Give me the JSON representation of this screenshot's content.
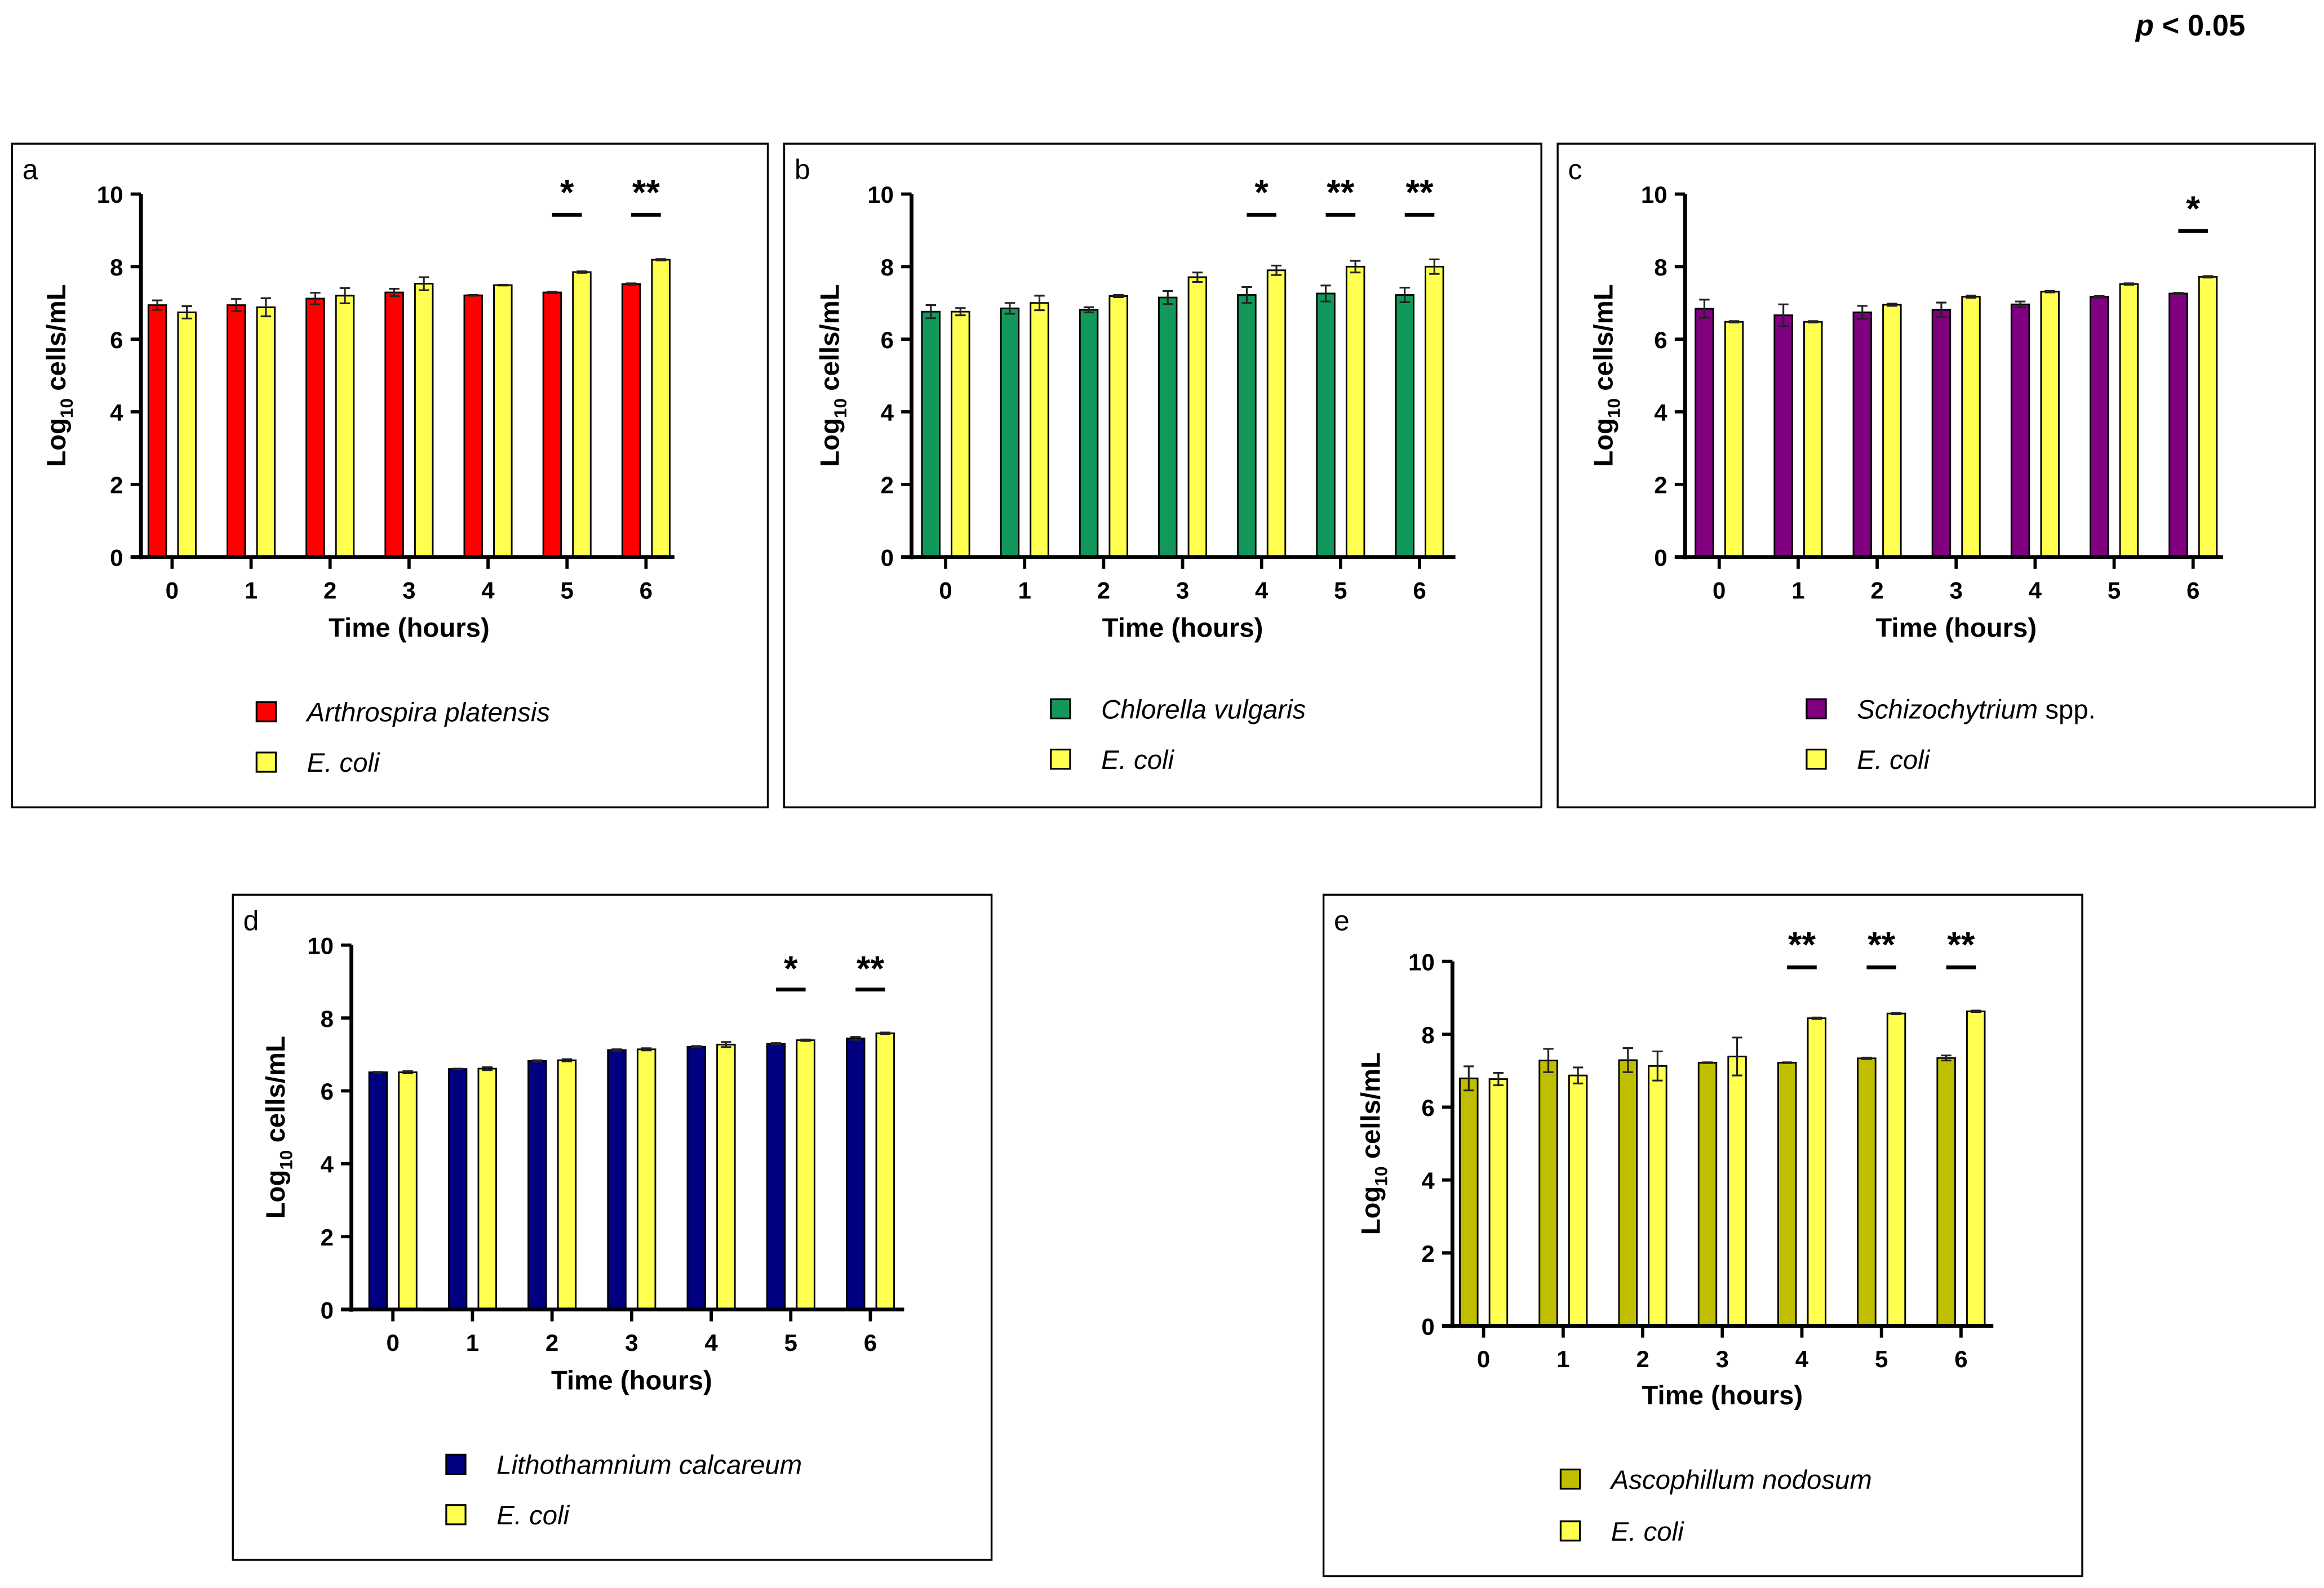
{
  "significance_note": "p < 0.05",
  "chart_data": [
    {
      "type": "bar",
      "panel": "a",
      "xlabel": "Time (hours)",
      "ylabel": {
        "base": "Log",
        "sub": "10",
        "rest": " cells/mL"
      },
      "categories": [
        "0",
        "1",
        "2",
        "3",
        "4",
        "5",
        "6"
      ],
      "ylim": [
        0,
        10
      ],
      "yticks": [
        "0",
        "2",
        "4",
        "6",
        "8",
        "10"
      ],
      "legend_placement": "bottom",
      "series": [
        {
          "name": "Arthrospira platensis",
          "suffix": "",
          "color": "#ff0000",
          "values": [
            6.94,
            6.94,
            7.12,
            7.29,
            7.21,
            7.29,
            7.52
          ],
          "errors": [
            0.13,
            0.17,
            0.16,
            0.1,
            0.01,
            0.02,
            0.02
          ]
        },
        {
          "name": "E. coli",
          "suffix": "",
          "color": "#ffff50",
          "values": [
            6.74,
            6.88,
            7.2,
            7.53,
            7.49,
            7.85,
            8.19
          ],
          "errors": [
            0.17,
            0.25,
            0.21,
            0.18,
            0.01,
            0.02,
            0.02
          ]
        }
      ],
      "significance": [
        {
          "x": "5",
          "label": "*"
        },
        {
          "x": "6",
          "label": "**"
        }
      ]
    },
    {
      "type": "bar",
      "panel": "b",
      "xlabel": "Time (hours)",
      "ylabel": {
        "base": "Log",
        "sub": "10",
        "rest": " cells/mL"
      },
      "categories": [
        "0",
        "1",
        "2",
        "3",
        "4",
        "5",
        "6"
      ],
      "ylim": [
        0,
        10
      ],
      "yticks": [
        "0",
        "2",
        "4",
        "6",
        "8",
        "10"
      ],
      "legend_placement": "bottom",
      "series": [
        {
          "name": "Chlorella vulgaris",
          "suffix": "",
          "color": "#12985a",
          "values": [
            6.76,
            6.85,
            6.81,
            7.15,
            7.22,
            7.26,
            7.22
          ],
          "errors": [
            0.18,
            0.15,
            0.07,
            0.18,
            0.22,
            0.22,
            0.2
          ]
        },
        {
          "name": "E. coli",
          "suffix": "",
          "color": "#ffff50",
          "values": [
            6.76,
            7.0,
            7.19,
            7.71,
            7.9,
            8.0,
            8.0
          ],
          "errors": [
            0.1,
            0.2,
            0.03,
            0.13,
            0.13,
            0.16,
            0.2
          ]
        }
      ],
      "significance": [
        {
          "x": "4",
          "label": "*"
        },
        {
          "x": "5",
          "label": "**"
        },
        {
          "x": "6",
          "label": "**"
        }
      ]
    },
    {
      "type": "bar",
      "panel": "c",
      "xlabel": "Time (hours)",
      "ylabel": {
        "base": "Log",
        "sub": "10",
        "rest": " cells/mL"
      },
      "categories": [
        "0",
        "1",
        "2",
        "3",
        "4",
        "5",
        "6"
      ],
      "ylim": [
        0,
        10
      ],
      "yticks": [
        "0",
        "2",
        "4",
        "6",
        "8",
        "10"
      ],
      "legend_placement": "bottom",
      "series": [
        {
          "name": "Schizochytrium",
          "suffix": " spp.",
          "color": "#800080",
          "values": [
            6.84,
            6.66,
            6.74,
            6.81,
            6.96,
            7.17,
            7.26
          ],
          "errors": [
            0.25,
            0.3,
            0.18,
            0.2,
            0.08,
            0.02,
            0.02
          ]
        },
        {
          "name": "E. coli",
          "suffix": "",
          "color": "#ffff50",
          "values": [
            6.48,
            6.48,
            6.95,
            7.17,
            7.31,
            7.52,
            7.72
          ],
          "errors": [
            0.02,
            0.02,
            0.03,
            0.03,
            0.02,
            0.02,
            0.02
          ]
        }
      ],
      "significance": [
        {
          "x": "6",
          "label": "*"
        }
      ]
    },
    {
      "type": "bar",
      "panel": "d",
      "xlabel": "Time (hours)",
      "ylabel": {
        "base": "Log",
        "sub": "10",
        "rest": " cells/mL"
      },
      "categories": [
        "0",
        "1",
        "2",
        "3",
        "4",
        "5",
        "6"
      ],
      "ylim": [
        0,
        10
      ],
      "yticks": [
        "0",
        "2",
        "4",
        "6",
        "8",
        "10"
      ],
      "legend_placement": "bottom",
      "series": [
        {
          "name": "Lithothamnium calcareum",
          "suffix": "",
          "color": "#000080",
          "values": [
            6.51,
            6.6,
            6.82,
            7.12,
            7.21,
            7.29,
            7.44
          ],
          "errors": [
            0.01,
            0.01,
            0.02,
            0.02,
            0.02,
            0.02,
            0.04
          ]
        },
        {
          "name": "E. coli",
          "suffix": "",
          "color": "#ffff50",
          "values": [
            6.51,
            6.61,
            6.84,
            7.14,
            7.27,
            7.39,
            7.58
          ],
          "errors": [
            0.03,
            0.04,
            0.03,
            0.03,
            0.07,
            0.02,
            0.02
          ]
        }
      ],
      "significance": [
        {
          "x": "5",
          "label": "*"
        },
        {
          "x": "6",
          "label": "**"
        }
      ]
    },
    {
      "type": "bar",
      "panel": "e",
      "xlabel": "Time (hours)",
      "ylabel": {
        "base": "Log",
        "sub": "10",
        "rest": " cells/mL"
      },
      "categories": [
        "0",
        "1",
        "2",
        "3",
        "4",
        "5",
        "6"
      ],
      "ylim": [
        0,
        10
      ],
      "yticks": [
        "0",
        "2",
        "4",
        "6",
        "8",
        "10"
      ],
      "legend_placement": "bottom",
      "series": [
        {
          "name": "Ascophillum nodosum",
          "suffix": "",
          "color": "#bfbf00",
          "values": [
            6.79,
            7.28,
            7.29,
            7.22,
            7.22,
            7.34,
            7.35
          ],
          "errors": [
            0.33,
            0.32,
            0.33,
            0.01,
            0.01,
            0.02,
            0.07
          ]
        },
        {
          "name": "E. coli",
          "suffix": "",
          "color": "#ffff50",
          "values": [
            6.77,
            6.87,
            7.13,
            7.39,
            8.44,
            8.57,
            8.63
          ],
          "errors": [
            0.17,
            0.22,
            0.4,
            0.52,
            0.02,
            0.02,
            0.02
          ]
        }
      ],
      "significance": [
        {
          "x": "4",
          "label": "**"
        },
        {
          "x": "5",
          "label": "**"
        },
        {
          "x": "6",
          "label": "**"
        }
      ]
    }
  ]
}
